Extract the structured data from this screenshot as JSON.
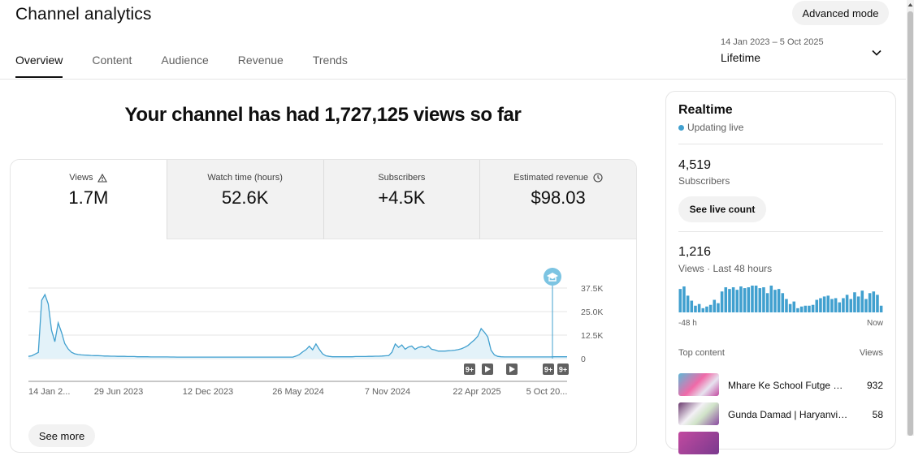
{
  "header": {
    "title": "Channel analytics",
    "advanced_mode": "Advanced mode",
    "tabs": [
      "Overview",
      "Content",
      "Audience",
      "Revenue",
      "Trends"
    ],
    "active_tab": "Overview",
    "date_range": "14 Jan 2023 – 5 Oct 2025",
    "period": "Lifetime"
  },
  "headline": "Your channel has had 1,727,125 views so far",
  "metrics": [
    {
      "label": "Views",
      "value": "1.7M",
      "icon": "warning-icon"
    },
    {
      "label": "Watch time (hours)",
      "value": "52.6K"
    },
    {
      "label": "Subscribers",
      "value": "+4.5K"
    },
    {
      "label": "Estimated revenue",
      "value": "$98.03",
      "icon": "clock-icon"
    }
  ],
  "see_more": "See more",
  "chart_data": {
    "type": "area",
    "series": [
      {
        "values": [
          1200,
          1500,
          2400,
          3300,
          31000,
          34000,
          29000,
          15000,
          9000,
          19000,
          14000,
          8000,
          5200,
          3400,
          2600,
          2200,
          2000,
          1900,
          1800,
          1700,
          1600,
          1600,
          1500,
          1400,
          1400,
          1300,
          1300,
          1200,
          1200,
          1200,
          1100,
          1100,
          1100,
          1000,
          1000,
          1000,
          1000,
          900,
          900,
          900,
          900,
          900,
          900,
          850,
          850,
          800,
          800,
          800,
          800,
          800,
          800,
          800,
          800,
          800,
          800,
          800,
          800,
          800,
          800,
          800,
          800,
          800,
          800,
          800,
          800,
          800,
          800,
          800,
          800,
          800,
          800,
          800,
          800,
          800,
          800,
          800,
          800,
          800,
          800,
          800,
          800,
          1400,
          2200,
          3600,
          4800,
          6600,
          4700,
          7800,
          5000,
          2600,
          1500,
          1200,
          1000,
          1000,
          1000,
          1000,
          1000,
          1000,
          1000,
          1100,
          1100,
          1100,
          1100,
          1200,
          1200,
          1300,
          1300,
          1400,
          1500,
          1600,
          3400,
          7800,
          6000,
          7300,
          5000,
          6200,
          6700,
          4900,
          6000,
          6400,
          5800,
          6800,
          5000,
          4600,
          4000,
          4000,
          4000,
          4200,
          4300,
          4500,
          4800,
          5200,
          6000,
          7000,
          8500,
          10000,
          12000,
          16000,
          14000,
          11500,
          4500,
          2000,
          1200,
          1000,
          900,
          900,
          900,
          900,
          900,
          900,
          900,
          900,
          900,
          900,
          900,
          900,
          900,
          900,
          900,
          1000,
          1000,
          1000,
          1000,
          1000
        ]
      }
    ],
    "x_tick_labels": [
      "14 Jan 2...",
      "29 Jun 2023",
      "12 Dec 2023",
      "26 May 2024",
      "7 Nov 2024",
      "22 Apr 2025",
      "5 Oct 20..."
    ],
    "y_tick_labels": [
      "37.5K",
      "25.0K",
      "12.5K",
      "0"
    ],
    "ylim": [
      0,
      37500
    ],
    "color": "#41a0cf",
    "grid": true,
    "markers": [
      "9+",
      "play",
      "play",
      "9+",
      "9+"
    ]
  },
  "realtime": {
    "title": "Realtime",
    "status": "Updating live",
    "subscribers": "4,519",
    "subscribers_label": "Subscribers",
    "live_count_button": "See live count",
    "views": "1,216",
    "views_label": "Views · Last 48 hours",
    "bars": [
      28,
      31,
      20,
      14,
      8,
      10,
      5,
      7,
      9,
      15,
      11,
      25,
      30,
      28,
      30,
      27,
      31,
      29,
      30,
      32,
      32,
      29,
      30,
      23,
      32,
      27,
      28,
      23,
      16,
      10,
      13,
      5,
      7,
      8,
      8,
      9,
      15,
      17,
      19,
      20,
      16,
      17,
      12,
      17,
      21,
      16,
      24,
      19,
      26,
      16,
      23,
      25,
      21,
      8
    ],
    "axis_left": "-48 h",
    "axis_right": "Now",
    "top_content_label": "Top content",
    "views_col_label": "Views",
    "top_content": [
      {
        "title": "Mhare Ke School Futge Dj ...",
        "views": "932"
      },
      {
        "title": "Gunda Damad | Haryanvi Re...",
        "views": "58"
      }
    ]
  },
  "colors": {
    "accent": "#41a0cf",
    "chip": "#f2f2f2"
  }
}
